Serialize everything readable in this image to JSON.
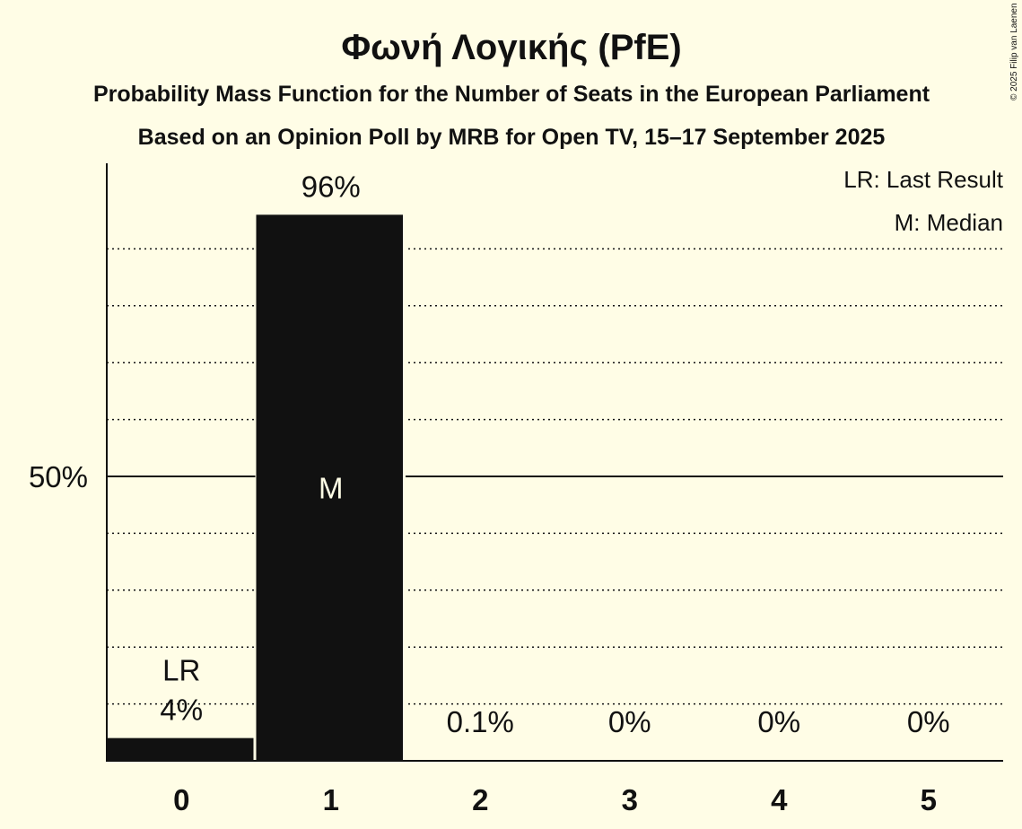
{
  "chart_data": {
    "type": "bar",
    "title": "Φωνή Λογικής (PfE)",
    "subtitle": "Probability Mass Function for the Number of Seats in the European Parliament",
    "source_line": "Based on an Opinion Poll by MRB for Open TV, 15–17 September 2025",
    "categories": [
      "0",
      "1",
      "2",
      "3",
      "4",
      "5"
    ],
    "values": [
      4,
      96,
      0.1,
      0,
      0,
      0
    ],
    "value_labels": [
      "4%",
      "96%",
      "0.1%",
      "0%",
      "0%",
      "0%"
    ],
    "ylim": [
      0,
      105
    ],
    "y_ticks": [
      {
        "value": 50,
        "label": "50%"
      }
    ],
    "gridlines_dotted": [
      10,
      20,
      30,
      40,
      60,
      70,
      80,
      90
    ],
    "last_result_index": 0,
    "median_index": 1,
    "last_result_marker": "LR",
    "median_marker": "M",
    "legend": [
      "LR: Last Result",
      "M: Median"
    ],
    "legend_position": "top-right",
    "copyright": "© 2025 Filip van Laenen",
    "colors": {
      "background": "#fffde6",
      "bar": "#111111",
      "text": "#111111",
      "median_text": "#fffde6"
    }
  }
}
